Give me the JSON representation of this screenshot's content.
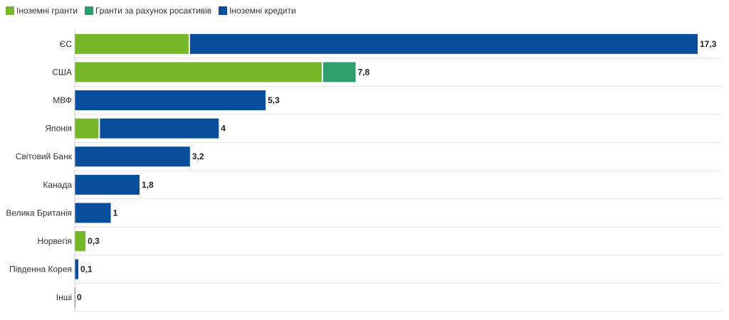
{
  "chart_data": {
    "type": "bar",
    "orientation": "horizontal",
    "stacked": true,
    "categories": [
      "ЄС",
      "США",
      "МВФ",
      "Японія",
      "Світовий Банк",
      "Канада",
      "Велика Британія",
      "Норвегія",
      "Південна Корея",
      "Інші"
    ],
    "series": [
      {
        "name": "Іноземні гранти",
        "color": "#76b82a",
        "values": [
          3.2,
          6.9,
          0,
          0.7,
          0,
          0,
          0,
          0.3,
          0,
          0
        ]
      },
      {
        "name": "Гранти за рахунок росактивів",
        "color": "#2e9e6b",
        "values": [
          0,
          0.9,
          0,
          0,
          0,
          0,
          0,
          0,
          0,
          0
        ]
      },
      {
        "name": "Іноземні кредити",
        "color": "#0a4f9c",
        "values": [
          14.1,
          0,
          5.3,
          3.3,
          3.2,
          1.8,
          1.0,
          0,
          0.1,
          0
        ]
      }
    ],
    "totals": [
      "17,3",
      "7,8",
      "5,3",
      "4",
      "3,2",
      "1,8",
      "1",
      "0,3",
      "0,1",
      "0"
    ],
    "xlim": [
      0,
      17.3
    ],
    "legend_position": "top-left",
    "grid": false
  }
}
